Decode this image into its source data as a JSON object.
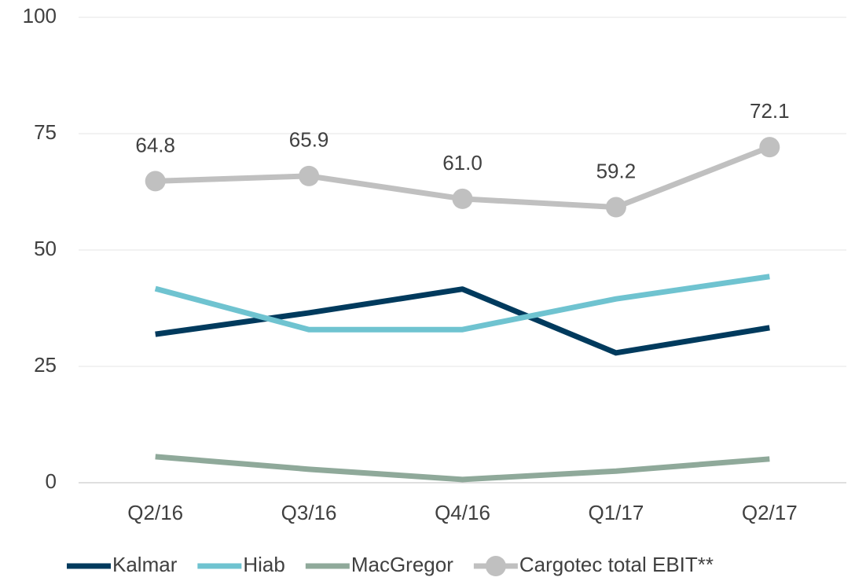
{
  "chart_data": {
    "type": "line",
    "categories": [
      "Q2/16",
      "Q3/16",
      "Q4/16",
      "Q1/17",
      "Q2/17"
    ],
    "series": [
      {
        "name": "Kalmar",
        "color": "#003a5d",
        "values": [
          31.9,
          36.5,
          41.6,
          27.9,
          33.3
        ]
      },
      {
        "name": "Hiab",
        "color": "#6fc3d0",
        "values": [
          41.7,
          32.9,
          32.9,
          39.5,
          44.3
        ]
      },
      {
        "name": "MacGregor",
        "color": "#8fa99a",
        "values": [
          5.6,
          2.9,
          0.7,
          2.5,
          5.1
        ]
      },
      {
        "name": "Cargotec total EBIT**",
        "color": "#c0c0c0",
        "markers": true,
        "values": [
          64.8,
          65.9,
          61.0,
          59.2,
          72.1
        ],
        "value_labels": [
          "64.8",
          "65.9",
          "61.0",
          "59.2",
          "72.1"
        ]
      }
    ],
    "ylim": [
      0,
      100
    ],
    "yticks": [
      0,
      25,
      50,
      75,
      100
    ],
    "grid": true,
    "legend": "bottom"
  }
}
